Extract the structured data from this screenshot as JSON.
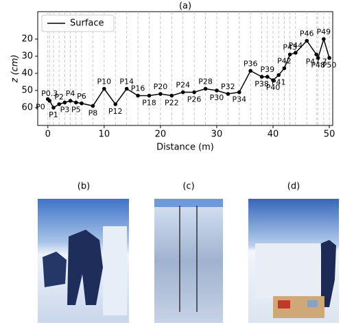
{
  "chart_data": {
    "type": "line",
    "title": "(a)",
    "xlabel": "Distance (m)",
    "ylabel": "z (cm)",
    "x": [
      0,
      0.3,
      1,
      2,
      3,
      4,
      5,
      6,
      8,
      10,
      12,
      14,
      16,
      18,
      20,
      22,
      24,
      26,
      28,
      30,
      32,
      34,
      36,
      38,
      39,
      40,
      41,
      42,
      43,
      44,
      46,
      47.7,
      48,
      49,
      50
    ],
    "point_labels": [
      "P0",
      "P0.3",
      "P1",
      "P2",
      "P3",
      "P4",
      "P5",
      "P6",
      "P8",
      "P10",
      "P12",
      "P14",
      "P16",
      "P18",
      "P20",
      "P22",
      "P24",
      "P26",
      "P28",
      "P30",
      "P32",
      "P34",
      "P36",
      "P38",
      "P39",
      "P40",
      "P41",
      "P42",
      "P43",
      "P44",
      "P46",
      "P47.7",
      "P48",
      "P49",
      "P50"
    ],
    "label_colors": [
      "#000",
      "#888",
      "#888",
      "#000",
      "#888",
      "#000",
      "#888",
      "#000",
      "#000",
      "#000",
      "#000",
      "#000",
      "#000",
      "#000",
      "#000",
      "#000",
      "#000",
      "#000",
      "#000",
      "#000",
      "#000",
      "#000",
      "#000",
      "#000",
      "#888",
      "#000",
      "#888",
      "#000",
      "#888",
      "#000",
      "#000",
      "#888",
      "#000",
      "#888",
      "#000"
    ],
    "series": [
      {
        "name": "Surface",
        "color": "#000",
        "values": [
          55,
          56,
          60,
          58,
          57,
          56,
          57,
          57.5,
          59,
          49,
          58,
          49,
          53,
          53,
          52,
          53,
          51,
          51,
          49,
          50,
          52,
          51,
          38.5,
          42,
          42,
          44,
          41,
          37,
          29,
          28,
          21,
          29,
          31,
          20,
          31
        ]
      }
    ],
    "xlim": [
      -1.8,
      50.6
    ],
    "xticks": [
      0,
      10,
      20,
      30,
      40,
      50
    ],
    "ylim": [
      70.4,
      4
    ],
    "yticks": [
      20,
      30,
      40,
      50,
      60
    ],
    "legend": "upper left",
    "panels": [
      "(b)",
      "(c)",
      "(d)"
    ]
  }
}
